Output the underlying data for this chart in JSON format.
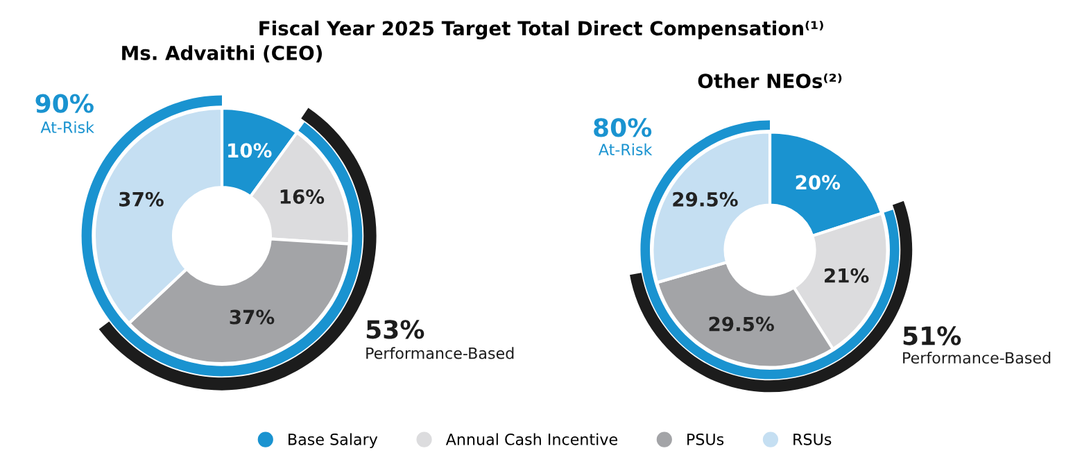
{
  "chart_data": [
    {
      "type": "donut",
      "title": "Fiscal Year 2025 Target Total Direct Compensation⁽¹⁾",
      "subtitle": "Ms. Advaithi (CEO)",
      "categories": [
        "Base Salary",
        "Annual Cash Incentive",
        "PSUs",
        "RSUs"
      ],
      "values": [
        10,
        16,
        37,
        37
      ],
      "value_labels": [
        "10%",
        "16%",
        "37%",
        "37%"
      ],
      "colors": [
        "#1a93d0",
        "#dcdcde",
        "#a3a4a7",
        "#c5dff2"
      ],
      "legend": "bottom",
      "annotations": [
        "90%",
        "At-Risk",
        "53%",
        "Performance-Based"
      ]
    },
    {
      "type": "donut",
      "subtitle": "Other NEOs⁽²⁾",
      "categories": [
        null,
        null,
        null,
        null
      ],
      "values": [
        20,
        21,
        29.5,
        29.5
      ],
      "value_labels": [
        "20%",
        "21%",
        "29.5%",
        "29.5%"
      ],
      "colors": [
        "#1a93d0",
        "#dcdcde",
        "#a3a4a7",
        "#c5dff2"
      ],
      "annotations": [
        "80%",
        "At-Risk",
        "51%",
        "Performance-Based"
      ]
    }
  ]
}
